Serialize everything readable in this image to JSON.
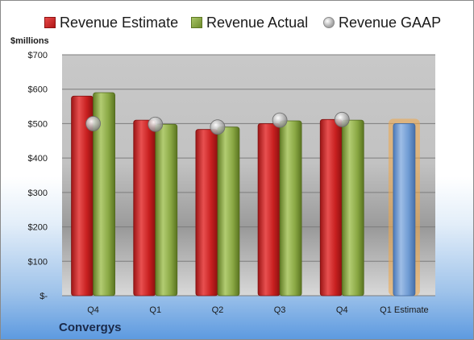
{
  "legend": {
    "estimate": "Revenue Estimate",
    "actual": "Revenue Actual",
    "gaap": "Revenue GAAP"
  },
  "units_label": "$millions",
  "company": "Convergys",
  "colors": {
    "estimate": "#c8201f",
    "actual": "#8fad48",
    "gaap": "#b5b5b5",
    "estimate_bar": "#6f9bd3",
    "highlight": "#f0a848"
  },
  "chart_data": {
    "type": "bar",
    "categories": [
      "Q4",
      "Q1",
      "Q2",
      "Q3",
      "Q4",
      "Q1 Estimate"
    ],
    "series": [
      {
        "name": "Revenue Estimate",
        "values": [
          580,
          510,
          483,
          500,
          512,
          500
        ]
      },
      {
        "name": "Revenue Actual",
        "values": [
          590,
          498,
          490,
          508,
          510,
          null
        ]
      },
      {
        "name": "Revenue GAAP",
        "values": [
          500,
          498,
          490,
          510,
          512,
          null
        ]
      }
    ],
    "ylim": [
      0,
      700
    ],
    "yticks": [
      0,
      100,
      200,
      300,
      400,
      500,
      600,
      700
    ],
    "ytick_labels": [
      "$-",
      "$100",
      "$200",
      "$300",
      "$400",
      "$500",
      "$600",
      "$700"
    ],
    "grid": true,
    "legend_position": "top"
  }
}
